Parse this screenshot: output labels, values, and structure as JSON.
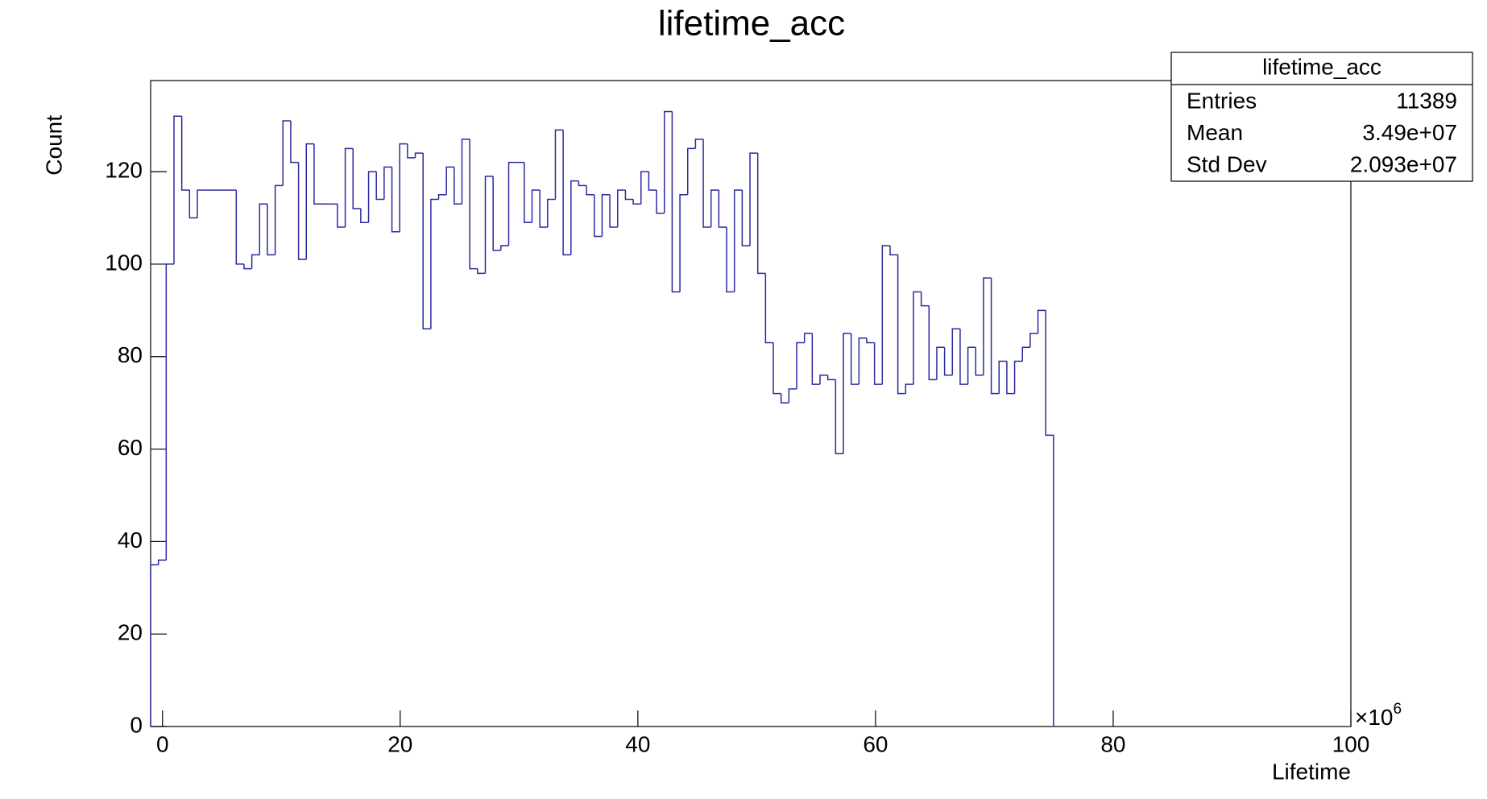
{
  "chart_data": {
    "type": "histogram",
    "title": "lifetime_acc",
    "x_label": "Lifetime",
    "y_label": "Count",
    "x_multiplier": "×10",
    "x_multiplier_exp": "6",
    "color": "#2a2aa0",
    "bins": [
      -1,
      -0.345,
      0.31,
      0.965,
      1.62,
      2.275,
      2.93,
      3.585,
      4.24,
      4.895,
      5.55,
      6.205,
      6.86,
      7.515,
      8.17,
      8.825,
      9.48,
      10.135,
      10.79,
      11.445,
      12.1,
      12.755,
      13.41,
      14.065,
      14.72,
      15.375,
      16.03,
      16.685,
      17.34,
      17.995,
      18.65,
      19.305,
      19.96,
      20.615,
      21.27,
      21.925,
      22.58,
      23.235,
      23.89,
      24.545,
      25.2,
      25.855,
      26.51,
      27.165,
      27.82,
      28.475,
      29.13,
      29.785,
      30.44,
      31.095,
      31.75,
      32.405,
      33.06,
      33.715,
      34.37,
      35.025,
      35.68,
      36.335,
      36.99,
      37.645,
      38.3,
      38.955,
      39.61,
      40.265,
      40.92,
      41.575,
      42.23,
      42.885,
      43.54,
      44.195,
      44.85,
      45.505,
      46.16,
      46.815,
      47.47,
      48.125,
      48.78,
      49.435,
      50.09,
      50.745,
      51.4,
      52.055,
      52.71,
      53.365,
      54.02,
      54.675,
      55.33,
      55.985,
      56.64,
      57.295,
      57.95,
      58.605,
      59.26,
      59.915,
      60.57,
      61.225,
      61.88,
      62.535,
      63.19,
      63.845,
      64.5,
      65.155,
      65.81,
      66.465,
      67.12,
      67.775,
      68.43,
      69.085,
      69.74,
      70.395,
      71.05,
      71.705,
      72.36,
      73.015,
      73.67,
      74.325,
      74.98
    ],
    "values": [
      35,
      36,
      100,
      132,
      116,
      110,
      116,
      116,
      116,
      116,
      116,
      100,
      99,
      102,
      113,
      102,
      117,
      131,
      122,
      101,
      126,
      113,
      113,
      113,
      108,
      125,
      112,
      109,
      120,
      114,
      121,
      107,
      126,
      123,
      124,
      86,
      114,
      115,
      121,
      113,
      127,
      99,
      98,
      119,
      103,
      104,
      122,
      122,
      109,
      116,
      108,
      114,
      129,
      102,
      118,
      117,
      115,
      106,
      115,
      108,
      116,
      114,
      113,
      120,
      116,
      111,
      133,
      94,
      115,
      125,
      127,
      108,
      116,
      108,
      94,
      116,
      104,
      124,
      98,
      83,
      72,
      70,
      73,
      83,
      85,
      74,
      76,
      75,
      59,
      85,
      74,
      84,
      83,
      74,
      104,
      102,
      72,
      74,
      94,
      91,
      75,
      82,
      76,
      86,
      74,
      82,
      76,
      97,
      72,
      79,
      72,
      79,
      82,
      85,
      90,
      63
    ],
    "xlim": [
      -1,
      100
    ],
    "xticks": [
      0,
      20,
      40,
      60,
      80,
      100
    ],
    "ylim": [
      0,
      139.7
    ],
    "yticks": [
      0,
      20,
      40,
      60,
      80,
      100,
      120
    ],
    "stats": {
      "title": "lifetime_acc",
      "rows": [
        [
          "Entries",
          "11389"
        ],
        [
          "Mean",
          "3.49e+07"
        ],
        [
          "Std Dev",
          "2.093e+07"
        ]
      ]
    }
  }
}
